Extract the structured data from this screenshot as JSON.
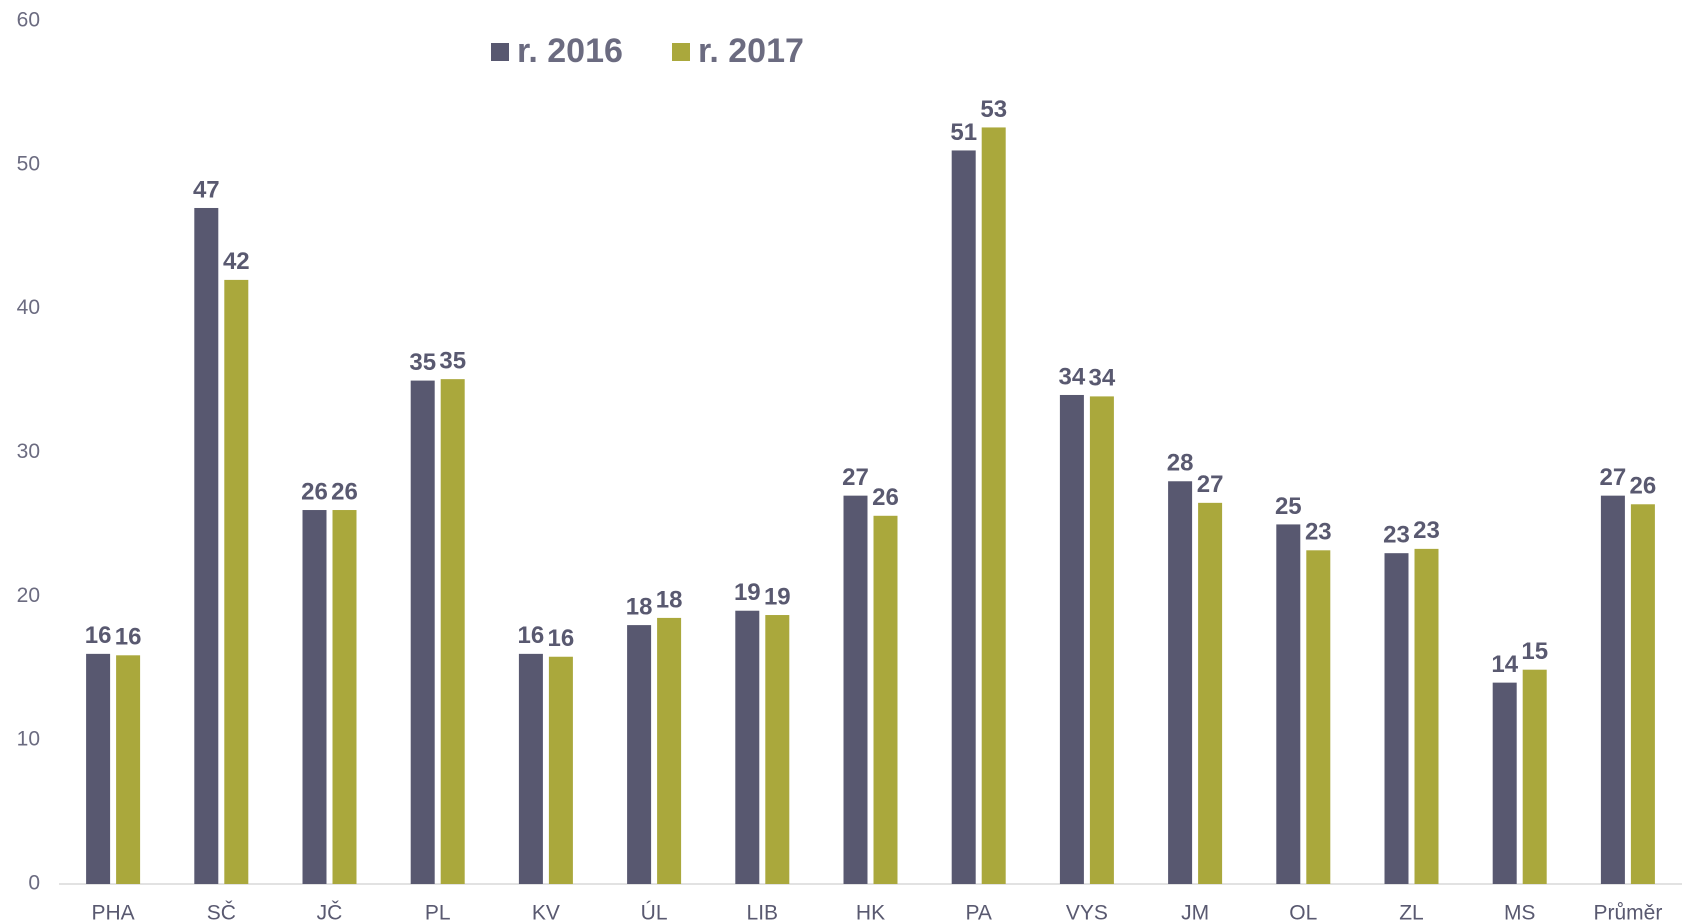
{
  "chart_data": {
    "type": "bar",
    "categories": [
      "PHA",
      "SČ",
      "JČ",
      "PL",
      "KV",
      "ÚL",
      "LIB",
      "HK",
      "PA",
      "VYS",
      "JM",
      "OL",
      "ZL",
      "MS",
      "Průměr"
    ],
    "series": [
      {
        "name": "r. 2016",
        "color": "#585870",
        "values": [
          16,
          47,
          26,
          35,
          16,
          18,
          19,
          27,
          51,
          34,
          28,
          25,
          23,
          14,
          27
        ]
      },
      {
        "name": "r. 2017",
        "color": "#aaa83c",
        "values": [
          15.9,
          42,
          26,
          35.1,
          15.8,
          18.5,
          18.7,
          25.6,
          52.6,
          33.9,
          26.5,
          23.2,
          23.3,
          14.9,
          26.4
        ],
        "value_labels": [
          "16",
          "42",
          "26",
          "35",
          "16",
          "18",
          "19",
          "26",
          "53",
          "34",
          "27",
          "23",
          "23",
          "15",
          "26"
        ]
      }
    ],
    "ylim": [
      0,
      60
    ],
    "yticks": [
      0,
      10,
      20,
      30,
      40,
      50,
      60
    ],
    "grid": false,
    "legend": "top"
  }
}
